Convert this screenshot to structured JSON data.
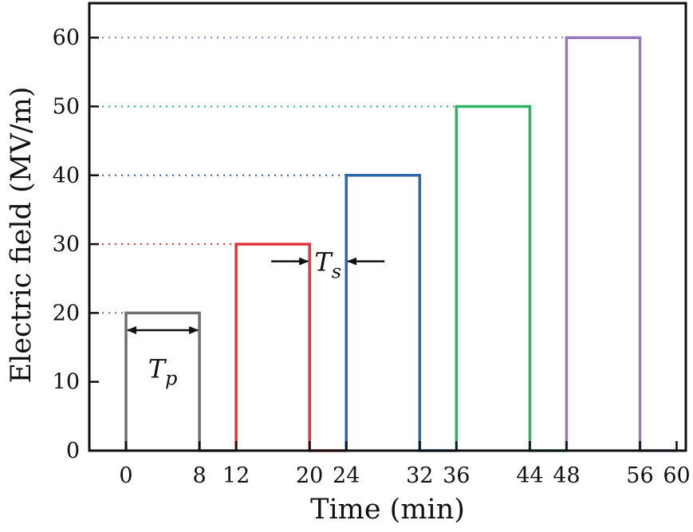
{
  "chart_data": {
    "type": "line",
    "xlabel": "Time (min)",
    "ylabel": "Electric field (MV/m)",
    "xlim": [
      -4,
      61
    ],
    "ylim": [
      0,
      65
    ],
    "x_ticks": [
      0,
      8,
      12,
      20,
      24,
      32,
      36,
      44,
      48,
      56,
      60
    ],
    "y_ticks": [
      0,
      10,
      20,
      30,
      40,
      50,
      60
    ],
    "grid": false,
    "legend": "none",
    "series": [
      {
        "color": "#707070",
        "x": [
          0,
          0,
          8,
          8,
          12
        ],
        "y": [
          0,
          20,
          20,
          0,
          0
        ]
      },
      {
        "color": "#e0363e",
        "x": [
          12,
          12,
          20,
          20,
          24
        ],
        "y": [
          0,
          30,
          30,
          0,
          0
        ]
      },
      {
        "color": "#2f67ad",
        "x": [
          24,
          24,
          32,
          32,
          36
        ],
        "y": [
          0,
          40,
          40,
          0,
          0
        ]
      },
      {
        "color": "#2db36a",
        "x": [
          36,
          36,
          44,
          44,
          48
        ],
        "y": [
          0,
          50,
          50,
          0,
          0
        ]
      },
      {
        "color": "#9b78c0",
        "x": [
          48,
          48,
          56,
          56,
          60
        ],
        "y": [
          0,
          60,
          60,
          0,
          0
        ]
      }
    ],
    "reference_lines": [
      {
        "y": 20,
        "x_end": 0,
        "color": "#707070"
      },
      {
        "y": 30,
        "x_end": 12,
        "color": "#e0363e"
      },
      {
        "y": 40,
        "x_end": 24,
        "color": "#2f67ad"
      },
      {
        "y": 50,
        "x_end": 36,
        "color": "#2db36a"
      },
      {
        "y": 60,
        "x_end": 48,
        "color": "#9b78c0"
      }
    ],
    "annotations": [
      {
        "label": "T",
        "sub": "p",
        "type": "double-arrow",
        "x_from": 0,
        "x_to": 8,
        "y": 17.5,
        "label_x": 4,
        "label_y": 12
      },
      {
        "label": "T",
        "sub": "s",
        "type": "inward-arrows",
        "x_from": 20,
        "x_to": 24,
        "y": 27.5,
        "label_x": 22,
        "label_y": 27.5
      }
    ]
  }
}
